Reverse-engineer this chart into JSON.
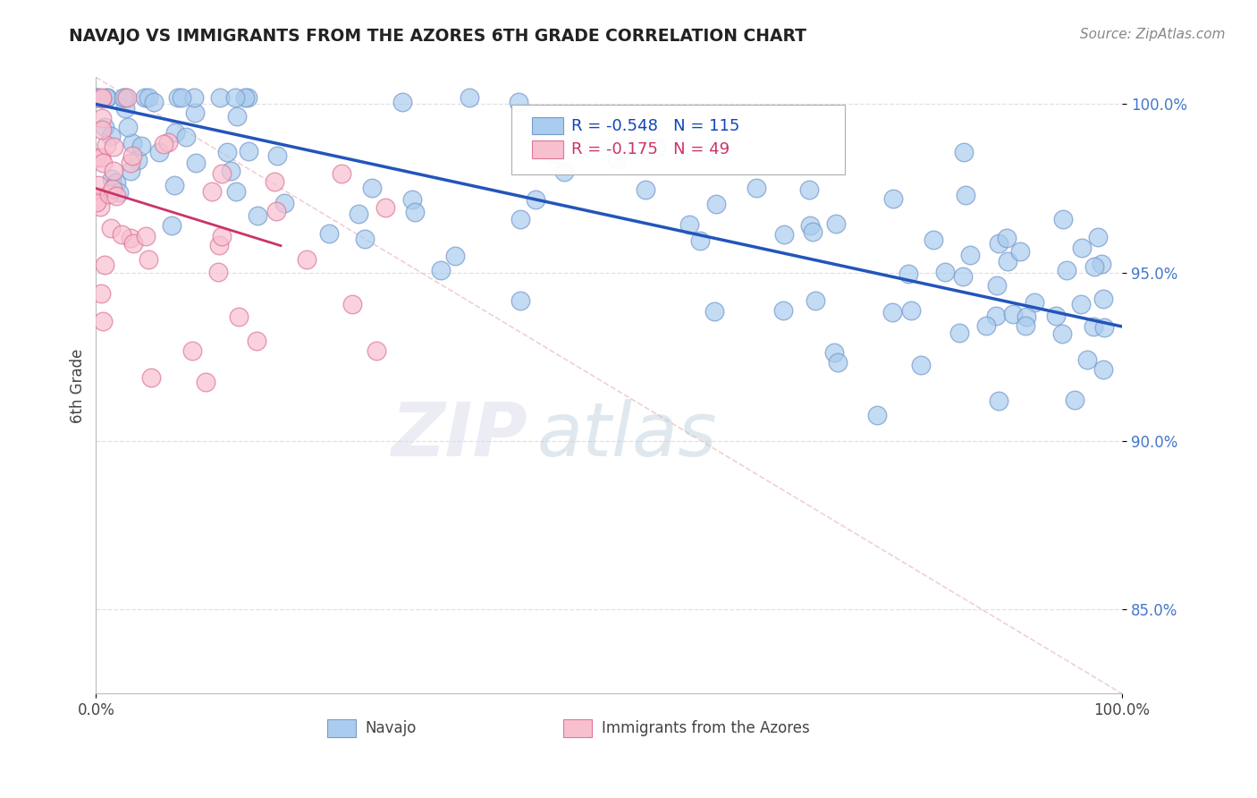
{
  "title": "NAVAJO VS IMMIGRANTS FROM THE AZORES 6TH GRADE CORRELATION CHART",
  "source_text": "Source: ZipAtlas.com",
  "ylabel": "6th Grade",
  "xlim": [
    0.0,
    1.0
  ],
  "ylim": [
    0.825,
    1.008
  ],
  "yticks": [
    0.85,
    0.9,
    0.95,
    1.0
  ],
  "ytick_labels": [
    "85.0%",
    "90.0%",
    "95.0%",
    "100.0%"
  ],
  "legend_navajo_R": "-0.548",
  "legend_navajo_N": "115",
  "legend_azores_R": "-0.175",
  "legend_azores_N": "49",
  "navajo_color": "#aaccee",
  "navajo_edge_color": "#7799cc",
  "azores_color": "#f8c0cf",
  "azores_edge_color": "#dd7799",
  "trend_navajo_color": "#2255bb",
  "trend_azores_color": "#cc3366",
  "diagonal_color": "#eec8cc",
  "background_color": "#ffffff",
  "nav_trend_x0": 0.0,
  "nav_trend_y0": 1.0,
  "nav_trend_x1": 1.0,
  "nav_trend_y1": 0.934,
  "az_trend_x0": 0.0,
  "az_trend_y0": 0.975,
  "az_trend_x1": 0.18,
  "az_trend_y1": 0.958
}
